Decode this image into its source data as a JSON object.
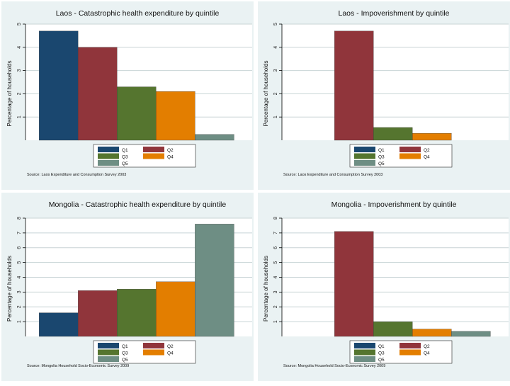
{
  "colors": {
    "q1": "#1a476f",
    "q2": "#90353b",
    "q3": "#55752f",
    "q4": "#e37e00",
    "q5": "#6e8e84",
    "outer": "#eaf2f3",
    "plot": "#ffffff",
    "grid": "#c8d4d6"
  },
  "chart_data": [
    {
      "type": "bar",
      "title": "Laos - Catastrophic health expenditure by quintile",
      "ylabel": "Percentage of households",
      "ylim": [
        0,
        5
      ],
      "yticks": [
        "1",
        "2",
        "3",
        "4",
        "5"
      ],
      "categories": [
        "Q1",
        "Q2",
        "Q3",
        "Q4",
        "Q5"
      ],
      "values": [
        4.7,
        4.0,
        2.3,
        2.1,
        0.25
      ],
      "legend": [
        "Q1",
        "Q2",
        "Q3",
        "Q4",
        "Q5"
      ],
      "source": "Source: Laos Expenditure and Consumption Survey 2003"
    },
    {
      "type": "bar",
      "title": "Laos - Impoverishment by quintile",
      "ylabel": "Percentage of households",
      "ylim": [
        0,
        5
      ],
      "yticks": [
        "1",
        "2",
        "3",
        "4",
        "5"
      ],
      "categories": [
        "Q1",
        "Q2",
        "Q3",
        "Q4",
        "Q5"
      ],
      "values": [
        0,
        4.7,
        0.55,
        0.3,
        0
      ],
      "legend": [
        "Q1",
        "Q2",
        "Q3",
        "Q4",
        "Q5"
      ],
      "source": "Source: Laos Expenditure and Consumption Survey 2003"
    },
    {
      "type": "bar",
      "title": "Mongolia - Catastrophic health expenditure by quintile",
      "ylabel": "Percentage of households",
      "ylim": [
        0,
        8
      ],
      "yticks": [
        "1",
        "2",
        "3",
        "4",
        "5",
        "6",
        "7",
        "8"
      ],
      "categories": [
        "Q1",
        "Q2",
        "Q3",
        "Q4",
        "Q5"
      ],
      "values": [
        1.6,
        3.1,
        3.2,
        3.7,
        7.6
      ],
      "legend": [
        "Q1",
        "Q2",
        "Q3",
        "Q4",
        "Q5"
      ],
      "source": "Source: Mongolia Household Socio-Economic Survey 2009"
    },
    {
      "type": "bar",
      "title": "Mongolia - Impoverishment by quintile",
      "ylabel": "Percentage of households",
      "ylim": [
        0,
        8
      ],
      "yticks": [
        "1",
        "2",
        "3",
        "4",
        "5",
        "6",
        "7",
        "8"
      ],
      "categories": [
        "Q1",
        "Q2",
        "Q3",
        "Q4",
        "Q5"
      ],
      "values": [
        0,
        7.1,
        1.0,
        0.5,
        0.35
      ],
      "legend": [
        "Q1",
        "Q2",
        "Q3",
        "Q4",
        "Q5"
      ],
      "source": "Source: Mongolia Household Socio-Economic Survey 2009"
    }
  ]
}
